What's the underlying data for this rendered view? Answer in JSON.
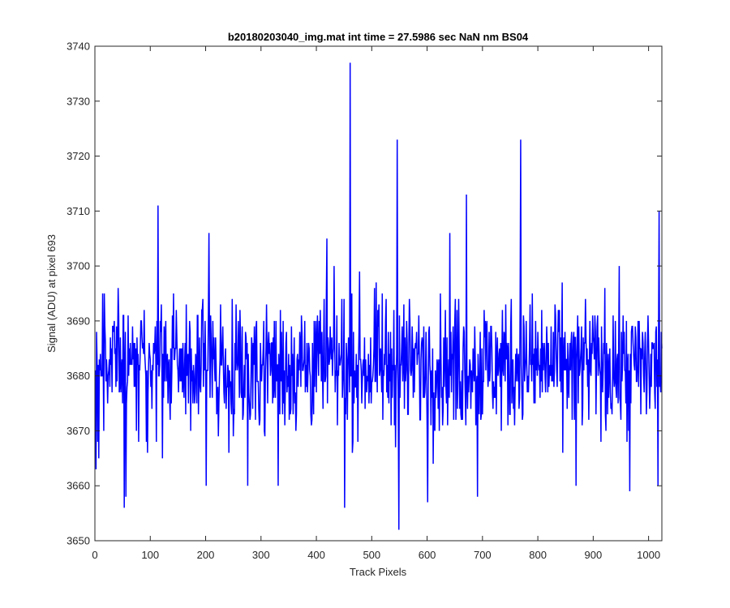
{
  "chart_data": {
    "type": "line",
    "title": "b20180203040_img.mat int time = 27.5986 sec  NaN nm BS04",
    "xlabel": "Track Pixels",
    "ylabel": "Signal (ADU) at pixel 693",
    "xlim": [
      0,
      1024
    ],
    "ylim": [
      3650,
      3740
    ],
    "xticks": [
      0,
      100,
      200,
      300,
      400,
      500,
      600,
      700,
      800,
      900,
      1000
    ],
    "yticks": [
      3650,
      3660,
      3670,
      3680,
      3690,
      3700,
      3710,
      3720,
      3730,
      3740
    ],
    "xtick_labels": [
      "0",
      "100",
      "200",
      "300",
      "400",
      "500",
      "600",
      "700",
      "800",
      "900",
      "1000"
    ],
    "ytick_labels": [
      "3650",
      "3660",
      "3670",
      "3680",
      "3690",
      "3700",
      "3710",
      "3720",
      "3730",
      "3740"
    ],
    "grid": false,
    "series": [
      {
        "color": "#0000ff",
        "n_points": 1024,
        "baseline": 3682,
        "noise_amplitude": 8,
        "notable_points": [
          {
            "x": 1,
            "y": 3663
          },
          {
            "x": 15,
            "y": 3670
          },
          {
            "x": 52,
            "y": 3656
          },
          {
            "x": 55,
            "y": 3658
          },
          {
            "x": 113,
            "y": 3711
          },
          {
            "x": 200,
            "y": 3660
          },
          {
            "x": 205,
            "y": 3706
          },
          {
            "x": 275,
            "y": 3660
          },
          {
            "x": 330,
            "y": 3660
          },
          {
            "x": 418,
            "y": 3705
          },
          {
            "x": 450,
            "y": 3656
          },
          {
            "x": 460,
            "y": 3737
          },
          {
            "x": 545,
            "y": 3723
          },
          {
            "x": 548,
            "y": 3652
          },
          {
            "x": 600,
            "y": 3657
          },
          {
            "x": 640,
            "y": 3706
          },
          {
            "x": 670,
            "y": 3713
          },
          {
            "x": 690,
            "y": 3658
          },
          {
            "x": 768,
            "y": 3723
          },
          {
            "x": 868,
            "y": 3660
          },
          {
            "x": 965,
            "y": 3659
          },
          {
            "x": 1016,
            "y": 3660
          },
          {
            "x": 1018,
            "y": 3710
          }
        ]
      }
    ]
  }
}
